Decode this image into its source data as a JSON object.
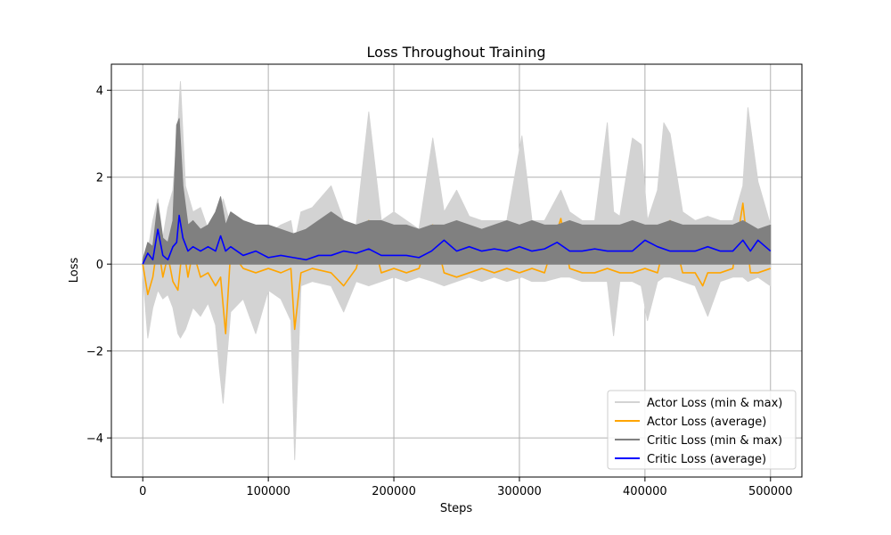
{
  "chart_data": {
    "type": "line",
    "title": "Loss Throughout Training",
    "xlabel": "Steps",
    "ylabel": "Loss",
    "xlim": [
      -25000,
      525000
    ],
    "ylim": [
      -4.9,
      4.6
    ],
    "x_ticks": [
      0,
      100000,
      200000,
      300000,
      400000,
      500000
    ],
    "y_ticks": [
      -4,
      -2,
      0,
      2,
      4
    ],
    "y_tick_labels": [
      "−4",
      "−2",
      "0",
      "2",
      "4"
    ],
    "grid": true,
    "legend_position": "lower-right",
    "colors": {
      "actor_band": "#d3d3d3",
      "actor_avg": "#ffa500",
      "critic_band": "#808080",
      "critic_avg": "#0000ff"
    },
    "series": [
      {
        "name": "Actor Loss (min & max)",
        "kind": "band",
        "x": [
          0,
          4000,
          8000,
          12000,
          16000,
          20000,
          24000,
          28000,
          30000,
          34000,
          40000,
          46000,
          52000,
          58000,
          61000,
          64000,
          70000,
          80000,
          90000,
          100000,
          110000,
          118000,
          121000,
          126000,
          135000,
          150000,
          160000,
          170000,
          180000,
          190000,
          200000,
          210000,
          220000,
          231000,
          240000,
          250000,
          260000,
          270000,
          280000,
          290000,
          302000,
          310000,
          320000,
          333000,
          340000,
          350000,
          360000,
          370000,
          375000,
          380000,
          390000,
          397000,
          402000,
          410000,
          415000,
          420000,
          430000,
          440000,
          450000,
          460000,
          470000,
          478000,
          482000,
          490000,
          500000
        ],
        "min": [
          -0.2,
          -1.7,
          -1.0,
          -0.6,
          -0.8,
          -0.7,
          -1.0,
          -1.6,
          -1.7,
          -1.5,
          -1.0,
          -1.2,
          -0.9,
          -1.4,
          -2.4,
          -3.2,
          -1.1,
          -0.8,
          -1.6,
          -0.6,
          -0.8,
          -1.3,
          -4.5,
          -0.5,
          -0.4,
          -0.5,
          -1.1,
          -0.4,
          -0.5,
          -0.4,
          -0.3,
          -0.4,
          -0.3,
          -0.4,
          -0.5,
          -0.4,
          -0.3,
          -0.4,
          -0.3,
          -0.4,
          -0.3,
          -0.4,
          -0.4,
          -0.3,
          -0.3,
          -0.4,
          -0.4,
          -0.4,
          -1.65,
          -0.4,
          -0.4,
          -0.5,
          -1.3,
          -0.4,
          -0.3,
          -0.3,
          -0.4,
          -0.5,
          -1.2,
          -0.4,
          -0.3,
          -0.3,
          -0.4,
          -0.3,
          -0.5
        ],
        "max": [
          0.1,
          0.3,
          1.0,
          1.5,
          0.6,
          1.3,
          1.7,
          3.2,
          4.2,
          1.8,
          1.2,
          1.3,
          0.8,
          0.9,
          1.1,
          1.5,
          0.9,
          1.0,
          0.8,
          0.7,
          0.9,
          1.0,
          0.5,
          1.2,
          1.3,
          1.8,
          1.0,
          0.9,
          3.5,
          1.0,
          1.2,
          1.0,
          0.8,
          2.9,
          1.2,
          1.7,
          1.1,
          1.0,
          1.0,
          1.0,
          2.95,
          1.0,
          1.0,
          1.7,
          1.2,
          1.0,
          1.0,
          3.25,
          1.2,
          1.1,
          2.9,
          2.75,
          1.0,
          1.7,
          3.25,
          3.0,
          1.2,
          1.0,
          1.1,
          1.0,
          1.0,
          1.8,
          3.6,
          1.9,
          0.9
        ]
      },
      {
        "name": "Actor Loss (average)",
        "kind": "line",
        "x": [
          0,
          4000,
          8000,
          12000,
          16000,
          20000,
          24000,
          28000,
          32000,
          36000,
          40000,
          46000,
          52000,
          58000,
          62000,
          66000,
          70000,
          80000,
          90000,
          100000,
          110000,
          118000,
          121000,
          126000,
          135000,
          150000,
          160000,
          170000,
          180000,
          190000,
          200000,
          210000,
          220000,
          231000,
          240000,
          250000,
          260000,
          270000,
          280000,
          290000,
          300000,
          310000,
          320000,
          333000,
          340000,
          350000,
          360000,
          370000,
          380000,
          390000,
          400000,
          410000,
          420000,
          430000,
          440000,
          446000,
          450000,
          460000,
          470000,
          478000,
          484000,
          490000,
          500000
        ],
        "y": [
          0.0,
          -0.7,
          -0.3,
          0.5,
          -0.3,
          0.2,
          -0.4,
          -0.6,
          0.5,
          -0.3,
          0.3,
          -0.3,
          -0.2,
          -0.5,
          -0.3,
          -1.6,
          0.3,
          -0.1,
          -0.2,
          -0.1,
          -0.2,
          -0.1,
          -1.5,
          -0.2,
          -0.1,
          -0.2,
          -0.5,
          -0.1,
          1.0,
          -0.2,
          -0.1,
          -0.2,
          -0.1,
          0.9,
          -0.2,
          -0.3,
          -0.2,
          -0.1,
          -0.2,
          -0.1,
          -0.2,
          -0.1,
          -0.2,
          1.05,
          -0.1,
          -0.2,
          -0.2,
          -0.1,
          -0.2,
          -0.2,
          -0.1,
          -0.2,
          1.0,
          -0.2,
          -0.2,
          -0.5,
          -0.2,
          -0.2,
          -0.1,
          1.4,
          -0.2,
          -0.2,
          -0.1
        ]
      },
      {
        "name": "Critic Loss (min & max)",
        "kind": "band",
        "x": [
          0,
          4000,
          8000,
          12000,
          16000,
          20000,
          24000,
          27000,
          29000,
          32000,
          36000,
          40000,
          46000,
          52000,
          58000,
          62000,
          66000,
          70000,
          80000,
          90000,
          100000,
          110000,
          120000,
          130000,
          140000,
          150000,
          160000,
          170000,
          180000,
          190000,
          200000,
          210000,
          220000,
          230000,
          240000,
          250000,
          260000,
          270000,
          280000,
          290000,
          300000,
          310000,
          320000,
          330000,
          340000,
          350000,
          360000,
          370000,
          380000,
          390000,
          400000,
          410000,
          420000,
          430000,
          440000,
          450000,
          460000,
          470000,
          478000,
          484000,
          490000,
          500000
        ],
        "min": [
          0,
          0,
          0,
          0,
          0,
          0,
          0,
          0,
          0,
          0,
          0,
          0,
          0,
          0,
          0,
          0,
          0,
          0,
          0,
          0,
          0,
          0,
          0,
          0,
          0,
          0,
          0,
          0,
          0,
          0,
          0,
          0,
          0,
          0,
          0,
          0,
          0,
          0,
          0,
          0,
          0,
          0,
          0,
          0,
          0,
          0,
          0,
          0,
          0,
          0,
          0,
          0,
          0,
          0,
          0,
          0,
          0,
          0,
          0,
          0,
          0,
          0
        ],
        "max": [
          0.1,
          0.5,
          0.4,
          1.4,
          0.6,
          0.5,
          1.0,
          3.2,
          3.35,
          1.8,
          0.9,
          1.0,
          0.8,
          0.9,
          1.2,
          1.55,
          0.9,
          1.2,
          1.0,
          0.9,
          0.9,
          0.8,
          0.7,
          0.8,
          1.0,
          1.2,
          1.0,
          0.9,
          1.0,
          1.0,
          0.9,
          0.9,
          0.8,
          0.9,
          0.9,
          1.0,
          0.9,
          0.8,
          0.9,
          1.0,
          0.9,
          1.0,
          0.9,
          0.9,
          1.0,
          0.9,
          0.9,
          0.9,
          0.9,
          1.0,
          0.9,
          0.9,
          1.0,
          0.9,
          0.9,
          0.9,
          0.9,
          0.9,
          1.0,
          0.9,
          0.8,
          0.9
        ]
      },
      {
        "name": "Critic Loss (average)",
        "kind": "line",
        "x": [
          0,
          4000,
          8000,
          12000,
          16000,
          20000,
          24000,
          27000,
          29000,
          32000,
          36000,
          40000,
          46000,
          52000,
          58000,
          62000,
          66000,
          70000,
          80000,
          90000,
          100000,
          110000,
          120000,
          130000,
          140000,
          150000,
          160000,
          170000,
          180000,
          190000,
          200000,
          210000,
          220000,
          230000,
          240000,
          250000,
          260000,
          270000,
          280000,
          290000,
          300000,
          310000,
          320000,
          330000,
          340000,
          350000,
          360000,
          370000,
          380000,
          390000,
          400000,
          410000,
          420000,
          430000,
          440000,
          450000,
          460000,
          470000,
          478000,
          484000,
          490000,
          500000
        ],
        "y": [
          0.0,
          0.25,
          0.1,
          0.8,
          0.2,
          0.1,
          0.4,
          0.5,
          1.12,
          0.6,
          0.3,
          0.4,
          0.3,
          0.4,
          0.3,
          0.65,
          0.3,
          0.4,
          0.2,
          0.3,
          0.15,
          0.2,
          0.15,
          0.1,
          0.2,
          0.2,
          0.3,
          0.25,
          0.35,
          0.2,
          0.2,
          0.2,
          0.15,
          0.3,
          0.55,
          0.3,
          0.4,
          0.3,
          0.35,
          0.3,
          0.4,
          0.3,
          0.35,
          0.5,
          0.3,
          0.3,
          0.35,
          0.3,
          0.3,
          0.3,
          0.55,
          0.4,
          0.3,
          0.3,
          0.3,
          0.4,
          0.3,
          0.3,
          0.55,
          0.3,
          0.55,
          0.3
        ]
      }
    ]
  }
}
